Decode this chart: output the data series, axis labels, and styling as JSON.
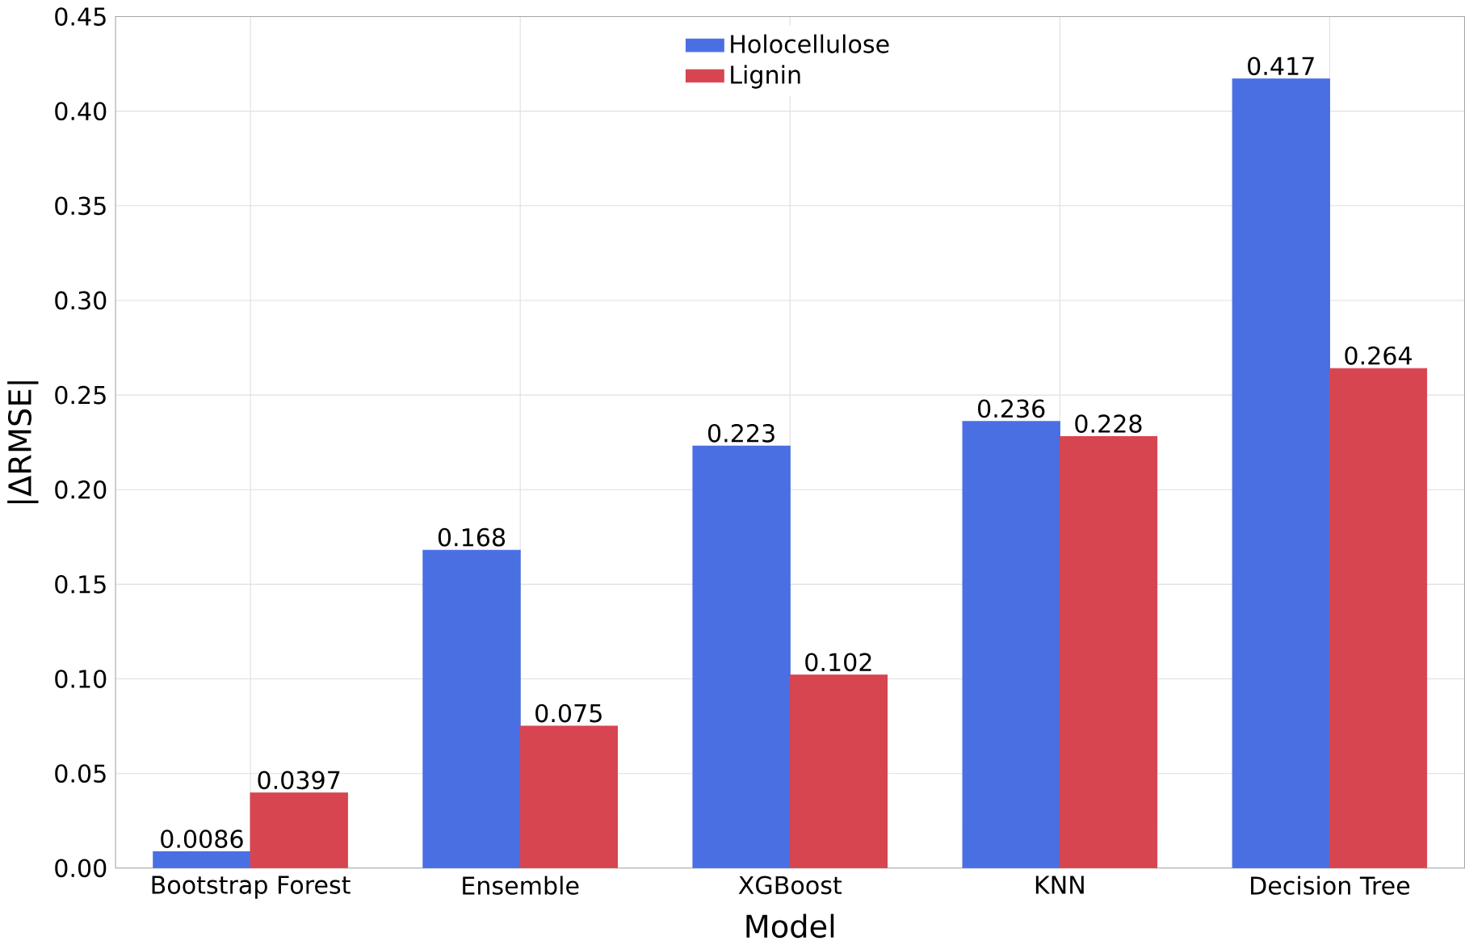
{
  "chart_data": {
    "type": "bar",
    "xlabel": "Model",
    "ylabel": "|ΔRMSE|",
    "categories": [
      "Bootstrap Forest",
      "Ensemble",
      "XGBoost",
      "KNN",
      "Decision Tree"
    ],
    "series": [
      {
        "name": "Holocellulose",
        "color": "#4a6fe3",
        "values": [
          0.0086,
          0.168,
          0.223,
          0.236,
          0.417
        ]
      },
      {
        "name": "Lignin",
        "color": "#d64550",
        "values": [
          0.0397,
          0.075,
          0.102,
          0.228,
          0.264
        ]
      }
    ],
    "ylim": [
      0,
      0.45
    ],
    "yticks": [
      {
        "value": 0,
        "label": "0.00"
      },
      0.05,
      {
        "value": 0.1,
        "label": "0.10"
      },
      0.15,
      {
        "value": 0.2,
        "label": "0.20"
      },
      0.25,
      {
        "value": 0.3,
        "label": "0.30"
      },
      0.35,
      {
        "value": 0.4,
        "label": "0.40"
      },
      0.45
    ],
    "grid": true,
    "legend": "top",
    "data_labels": true
  }
}
